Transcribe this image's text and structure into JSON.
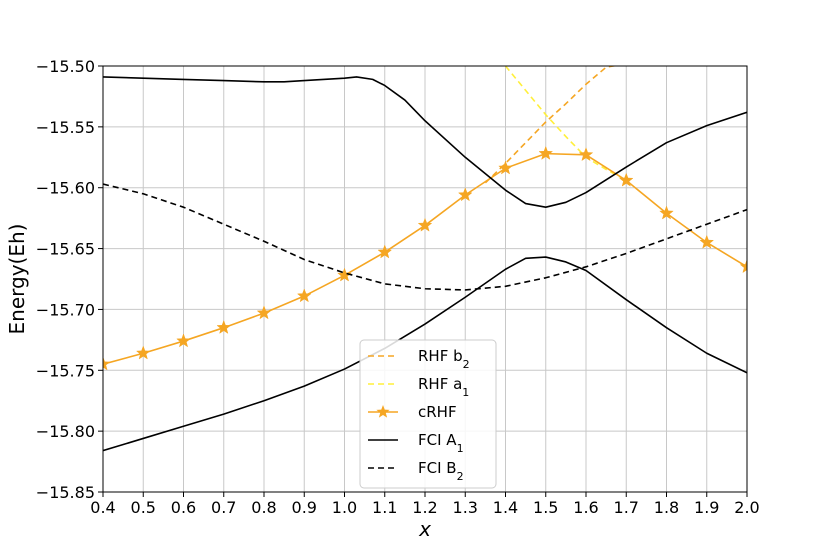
{
  "chart_data": {
    "type": "line",
    "xlabel": "x",
    "ylabel": "Energy(Eh)",
    "xlim": [
      0.4,
      2.0
    ],
    "ylim": [
      -15.85,
      -15.5
    ],
    "grid": true,
    "legend_position": "lower-center",
    "xticks": [
      "0.4",
      "0.5",
      "0.6",
      "0.7",
      "0.8",
      "0.9",
      "1.0",
      "1.1",
      "1.2",
      "1.3",
      "1.4",
      "1.5",
      "1.6",
      "1.7",
      "1.8",
      "1.9",
      "2.0"
    ],
    "yticks": [
      "−15.50",
      "−15.55",
      "−15.60",
      "−15.65",
      "−15.70",
      "−15.75",
      "−15.80",
      "−15.85"
    ],
    "series": [
      {
        "name": "RHF b",
        "sub": "2",
        "color": "#f5a623",
        "style": "dashed",
        "x": [
          1.35,
          1.4,
          1.45,
          1.5,
          1.55,
          1.6,
          1.65,
          1.7
        ],
        "y": [
          -15.596,
          -15.58,
          -15.563,
          -15.546,
          -15.531,
          -15.515,
          -15.501,
          -15.498
        ]
      },
      {
        "name": "RHF a",
        "sub": "1",
        "color": "#ffef3a",
        "style": "dashed",
        "x": [
          1.4,
          1.45,
          1.5,
          1.55,
          1.6,
          1.65,
          1.7
        ],
        "y": [
          -15.5,
          -15.52,
          -15.54,
          -15.558,
          -15.575,
          -15.585,
          -15.594
        ]
      },
      {
        "name": "cRHF",
        "sub": "",
        "color": "#f5a623",
        "style": "solid-star",
        "x": [
          0.4,
          0.5,
          0.6,
          0.7,
          0.8,
          0.9,
          1.0,
          1.1,
          1.2,
          1.3,
          1.4,
          1.5,
          1.6,
          1.7,
          1.8,
          1.9,
          2.0
        ],
        "y": [
          -15.745,
          -15.736,
          -15.726,
          -15.715,
          -15.703,
          -15.689,
          -15.672,
          -15.653,
          -15.631,
          -15.606,
          -15.584,
          -15.572,
          -15.573,
          -15.594,
          -15.621,
          -15.645,
          -15.665
        ]
      },
      {
        "name": "FCI A",
        "sub": "1",
        "color": "#000000",
        "style": "solid",
        "x": [
          0.4,
          0.5,
          0.6,
          0.7,
          0.8,
          0.9,
          1.0,
          1.1,
          1.2,
          1.3,
          1.4,
          1.45,
          1.5,
          1.55,
          1.6,
          1.7,
          1.8,
          1.9,
          2.0
        ],
        "y": [
          -15.816,
          -15.806,
          -15.796,
          -15.786,
          -15.775,
          -15.763,
          -15.749,
          -15.732,
          -15.712,
          -15.69,
          -15.667,
          -15.658,
          -15.657,
          -15.661,
          -15.668,
          -15.692,
          -15.715,
          -15.736,
          -15.752
        ]
      },
      {
        "name": "FCI A",
        "sub": "1",
        "legend": false,
        "color": "#000000",
        "style": "solid",
        "x": [
          0.4,
          0.5,
          0.6,
          0.7,
          0.8,
          0.85,
          0.9,
          1.0,
          1.03,
          1.07,
          1.1,
          1.15,
          1.2,
          1.3,
          1.4,
          1.45,
          1.5,
          1.55,
          1.6,
          1.7,
          1.8,
          1.9,
          2.0
        ],
        "y": [
          -15.509,
          -15.51,
          -15.511,
          -15.512,
          -15.513,
          -15.513,
          -15.512,
          -15.51,
          -15.509,
          -15.511,
          -15.516,
          -15.528,
          -15.545,
          -15.575,
          -15.602,
          -15.613,
          -15.616,
          -15.612,
          -15.604,
          -15.583,
          -15.563,
          -15.549,
          -15.538
        ]
      },
      {
        "name": "FCI B",
        "sub": "2",
        "color": "#000000",
        "style": "dashed",
        "x": [
          0.4,
          0.5,
          0.6,
          0.7,
          0.8,
          0.9,
          1.0,
          1.1,
          1.2,
          1.3,
          1.4,
          1.5,
          1.6,
          1.7,
          1.8,
          1.9,
          2.0
        ],
        "y": [
          -15.597,
          -15.605,
          -15.616,
          -15.63,
          -15.644,
          -15.659,
          -15.67,
          -15.679,
          -15.683,
          -15.684,
          -15.681,
          -15.674,
          -15.665,
          -15.654,
          -15.642,
          -15.63,
          -15.618
        ]
      }
    ]
  }
}
